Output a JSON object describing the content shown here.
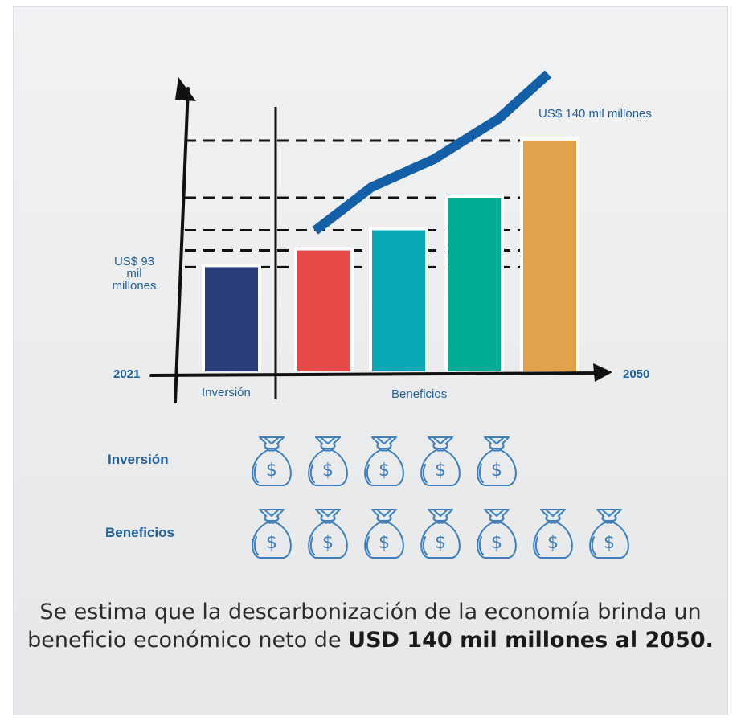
{
  "chart_data": {
    "type": "bar",
    "categories": [
      "Inversión",
      "Beneficios 1",
      "Beneficios 2",
      "Beneficios 3",
      "Beneficios 4"
    ],
    "values": [
      93,
      108,
      126,
      155,
      206
    ],
    "colors": [
      "#283d7a",
      "#e84a4a",
      "#0aa7b4",
      "#00ac96",
      "#e2a24c"
    ],
    "trend_line": {
      "type": "line",
      "color": "#1460a8"
    },
    "x_start_label": "2021",
    "x_end_label": "2050",
    "group_labels": [
      "Inversión",
      "Beneficios"
    ],
    "annotations": [
      {
        "text": "US$ 93 mil millones",
        "lines": [
          "US$ 93",
          "mil",
          "millones"
        ]
      },
      {
        "text": "US$ 140 mil millones"
      }
    ],
    "gridlines": "dashed",
    "legend": "none"
  },
  "rows": [
    {
      "label": "Inversión",
      "bag_count": 5,
      "icon": "money-bag-icon"
    },
    {
      "label": "Beneficios",
      "bag_count": 7,
      "icon": "money-bag-icon"
    }
  ],
  "summary": {
    "text": "Se estima que la descarbonización de la economía brinda un beneficio económico neto de",
    "highlight": "USD 140 mil millones al 2050."
  }
}
